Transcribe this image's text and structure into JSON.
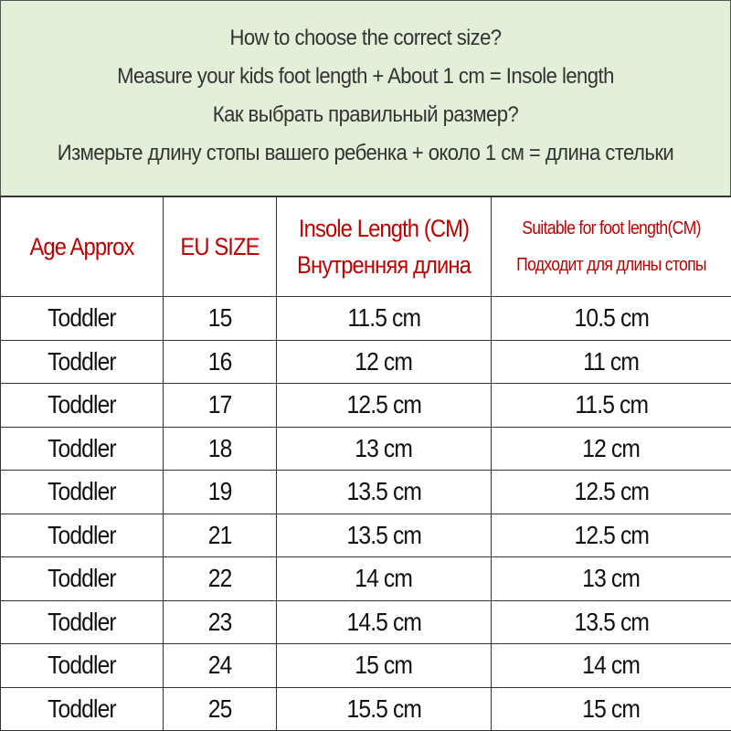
{
  "intro": {
    "lines": [
      "How to choose the correct size?",
      "Measure your kids foot length + About 1 cm = Insole length",
      "Как выбрать правильный размер?",
      "Измерьте длину стопы вашего ребенка + около 1 см = длина стельки"
    ],
    "background": "#e2efd9"
  },
  "table": {
    "header_color": "#c00000",
    "headers": {
      "age": "Age Approx",
      "eu": "EU SIZE",
      "insole_en": "Insole Length (CM)",
      "insole_ru": "Внутренняя длина",
      "foot_en": "Suitable for foot length(CM)",
      "foot_ru": "Подходит для длины стопы"
    },
    "rows": [
      {
        "age": "Toddler",
        "eu": "15",
        "insole": "11.5 cm",
        "foot": "10.5 cm"
      },
      {
        "age": "Toddler",
        "eu": "16",
        "insole": "12 cm",
        "foot": "11 cm"
      },
      {
        "age": "Toddler",
        "eu": "17",
        "insole": "12.5 cm",
        "foot": "11.5 cm"
      },
      {
        "age": "Toddler",
        "eu": "18",
        "insole": "13 cm",
        "foot": "12 cm"
      },
      {
        "age": "Toddler",
        "eu": "19",
        "insole": "13.5 cm",
        "foot": "12.5 cm"
      },
      {
        "age": "Toddler",
        "eu": "21",
        "insole": "13.5 cm",
        "foot": "12.5 cm"
      },
      {
        "age": "Toddler",
        "eu": "22",
        "insole": "14 cm",
        "foot": "13 cm"
      },
      {
        "age": "Toddler",
        "eu": "23",
        "insole": "14.5 cm",
        "foot": "13.5 cm"
      },
      {
        "age": "Toddler",
        "eu": "24",
        "insole": "15 cm",
        "foot": "14 cm"
      },
      {
        "age": "Toddler",
        "eu": "25",
        "insole": "15.5 cm",
        "foot": "15 cm"
      }
    ]
  }
}
